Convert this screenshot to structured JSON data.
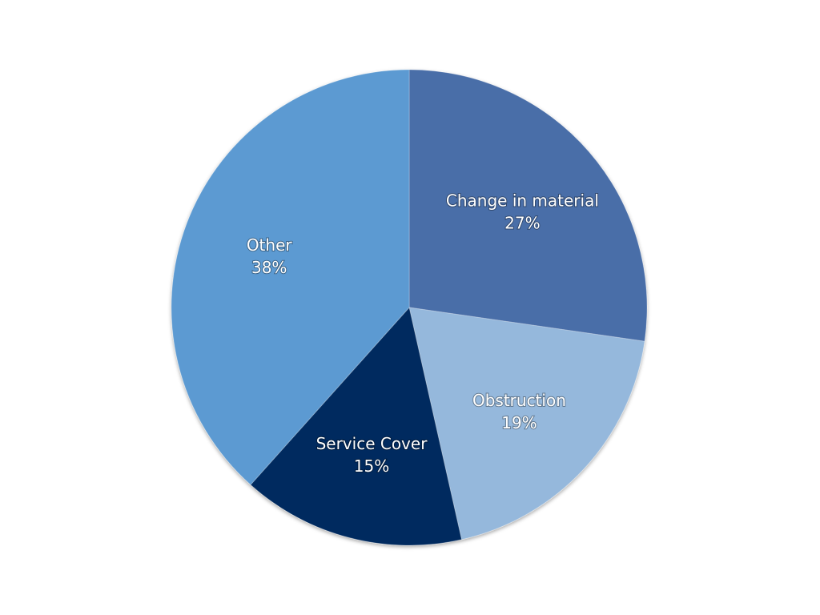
{
  "chart_data": {
    "type": "pie",
    "title": "",
    "legend": "none",
    "slices": [
      {
        "label": "Change in material",
        "value": 27,
        "value_label": "27%",
        "color": "#4a6ea8"
      },
      {
        "label": "Obstruction",
        "value": 19,
        "value_label": "19%",
        "color": "#95b8dc"
      },
      {
        "label": "Service Cover",
        "value": 15,
        "value_label": "15%",
        "color": "#012a5e"
      },
      {
        "label": "Other",
        "value": 38,
        "value_label": "38%",
        "color": "#5b9ad2"
      }
    ]
  }
}
